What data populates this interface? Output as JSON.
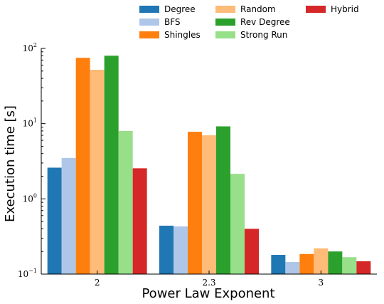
{
  "chart_data": {
    "type": "bar",
    "xlabel": "Power Law Exponent",
    "ylabel": "Execution time [s]",
    "yscale": "log",
    "ylim": [
      0.1,
      100
    ],
    "categories": [
      "2",
      "2.3",
      "3"
    ],
    "yticks": [
      {
        "base": "10",
        "exp": "−1",
        "value": 0.1
      },
      {
        "base": "10",
        "exp": "0",
        "value": 1
      },
      {
        "base": "10",
        "exp": "1",
        "value": 10
      },
      {
        "base": "10",
        "exp": "2",
        "value": 100
      }
    ],
    "legend_position": "top-right",
    "grid": false,
    "series": [
      {
        "name": "Degree",
        "color": "#1f77b4",
        "values": [
          2.6,
          0.44,
          0.18
        ]
      },
      {
        "name": "BFS",
        "color": "#aec7e8",
        "values": [
          3.5,
          0.43,
          0.145
        ]
      },
      {
        "name": "Shingles",
        "color": "#ff7f0e",
        "values": [
          75,
          7.8,
          0.185
        ]
      },
      {
        "name": "Random",
        "color": "#ffbb78",
        "values": [
          52,
          7.0,
          0.22
        ]
      },
      {
        "name": "Rev Degree",
        "color": "#2ca02c",
        "values": [
          80,
          9.2,
          0.2
        ]
      },
      {
        "name": "Strong Run",
        "color": "#98df8a",
        "values": [
          8.0,
          2.15,
          0.168
        ]
      },
      {
        "name": "Hybrid",
        "color": "#d62728",
        "values": [
          2.55,
          0.4,
          0.148
        ]
      }
    ]
  }
}
